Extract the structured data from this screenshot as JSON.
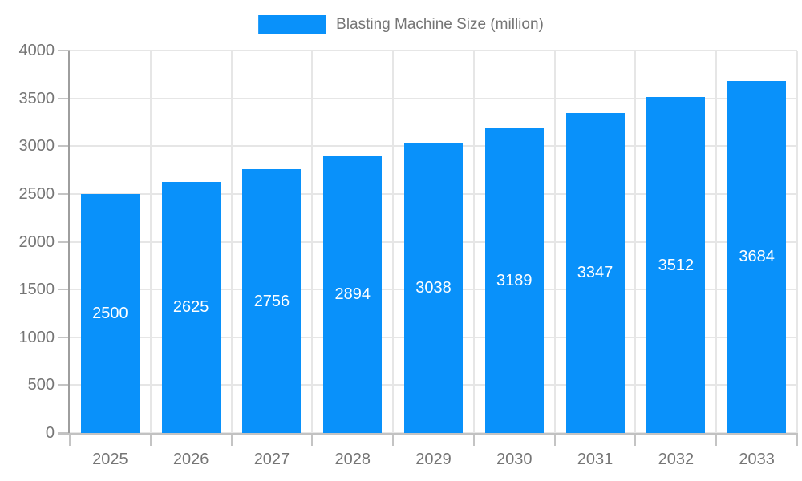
{
  "legend": {
    "label": "Blasting Machine Size (million)"
  },
  "chart_data": {
    "type": "bar",
    "title": "",
    "xlabel": "",
    "ylabel": "",
    "series_name": "Blasting Machine Size (million)",
    "categories": [
      "2025",
      "2026",
      "2027",
      "2028",
      "2029",
      "2030",
      "2031",
      "2032",
      "2033"
    ],
    "values": [
      2500,
      2625,
      2756,
      2894,
      3038,
      3189,
      3347,
      3512,
      3684
    ],
    "ylim": [
      0,
      4000
    ],
    "ytick_step": 500,
    "ytick_labels": [
      "0",
      "500",
      "1000",
      "1500",
      "2000",
      "2500",
      "3000",
      "3500",
      "4000"
    ],
    "grid": true,
    "legend_position": "top",
    "bar_color": "#0991fa",
    "value_labels_shown": true
  },
  "colors": {
    "bar": "#0991fa",
    "grid": "#e6e6e6",
    "tick": "#c4c4c4",
    "axis": "#9e9e9e",
    "baseline": "#c2c2c2",
    "label_text": "#757575",
    "value_label_text": "#ffffff",
    "background": "#ffffff"
  }
}
